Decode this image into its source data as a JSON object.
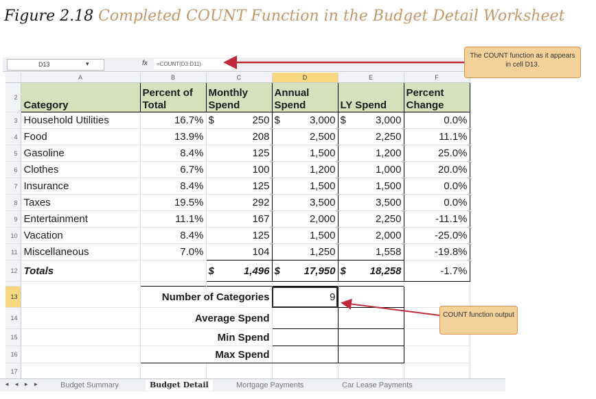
{
  "caption": {
    "figure_number": "Figure 2.18",
    "title": "Completed COUNT Function in the Budget Detail Worksheet"
  },
  "formula_bar": {
    "name_box": "D13",
    "fx_label": "fx",
    "formula": "=COUNT(D3:D11)"
  },
  "columns": [
    "A",
    "B",
    "C",
    "D",
    "E",
    "F"
  ],
  "header": {
    "row": "2",
    "category": "Category",
    "pct_total": "Percent of Total",
    "monthly": "Monthly Spend",
    "annual": "Annual Spend",
    "ly": "LY Spend",
    "pct_change": "Percent Change"
  },
  "rows": [
    {
      "n": "3",
      "category": "Household Utilities",
      "pct": "16.7%",
      "monthly": "250",
      "annual": "3,000",
      "ly": "3,000",
      "change": "0.0%"
    },
    {
      "n": "4",
      "category": "Food",
      "pct": "13.9%",
      "monthly": "208",
      "annual": "2,500",
      "ly": "2,250",
      "change": "11.1%"
    },
    {
      "n": "5",
      "category": "Gasoline",
      "pct": "8.4%",
      "monthly": "125",
      "annual": "1,500",
      "ly": "1,200",
      "change": "25.0%"
    },
    {
      "n": "6",
      "category": "Clothes",
      "pct": "6.7%",
      "monthly": "100",
      "annual": "1,200",
      "ly": "1,000",
      "change": "20.0%"
    },
    {
      "n": "7",
      "category": "Insurance",
      "pct": "8.4%",
      "monthly": "125",
      "annual": "1,500",
      "ly": "1,500",
      "change": "0.0%"
    },
    {
      "n": "8",
      "category": "Taxes",
      "pct": "19.5%",
      "monthly": "292",
      "annual": "3,500",
      "ly": "3,500",
      "change": "0.0%"
    },
    {
      "n": "9",
      "category": "Entertainment",
      "pct": "11.1%",
      "monthly": "167",
      "annual": "2,000",
      "ly": "2,250",
      "change": "-11.1%"
    },
    {
      "n": "10",
      "category": "Vacation",
      "pct": "8.4%",
      "monthly": "125",
      "annual": "1,500",
      "ly": "2,000",
      "change": "-25.0%"
    },
    {
      "n": "11",
      "category": "Miscellaneous",
      "pct": "7.0%",
      "monthly": "104",
      "annual": "1,250",
      "ly": "1,558",
      "change": "-19.8%"
    }
  ],
  "dollar_sign": "$",
  "totals": {
    "n": "12",
    "label": "Totals",
    "monthly": "1,496",
    "annual": "17,950",
    "ly": "18,258",
    "change": "-1.7%"
  },
  "stats": [
    {
      "n": "13",
      "label": "Number of Categories",
      "value": "9"
    },
    {
      "n": "14",
      "label": "Average Spend",
      "value": ""
    },
    {
      "n": "15",
      "label": "Min Spend",
      "value": ""
    },
    {
      "n": "16",
      "label": "Max Spend",
      "value": ""
    }
  ],
  "last_row": "17",
  "sheet_tabs": {
    "nav": "◄ ◄ ► ►",
    "tabs": [
      "Budget Summary",
      "Budget Detail",
      "Mortgage Payments",
      "Car Lease Payments"
    ],
    "active": "Budget Detail"
  },
  "callouts": {
    "formula_note": "The COUNT function as it appears in cell D13.",
    "output_note": "COUNT function output"
  },
  "colors": {
    "header_fill": "#d6e0bd",
    "selected_header": "#f8d981",
    "callout_fill": "#f2d29a",
    "arrow": "#c0283a",
    "caption_title": "#c2986a"
  }
}
